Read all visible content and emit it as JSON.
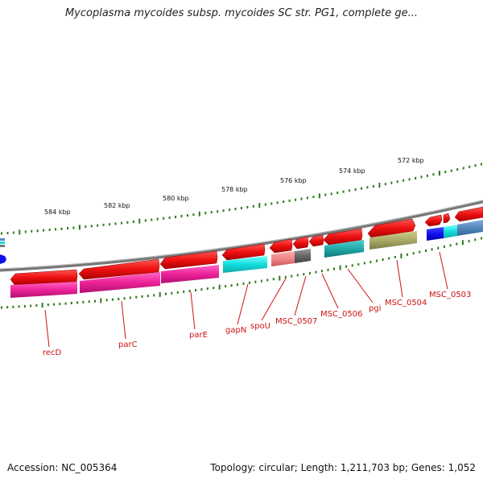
{
  "title": "Mycoplasma mycoides subsp. mycoides SC str. PG1, complete ge...",
  "footer": {
    "accession": "Accession: NC_005364",
    "summary": "Topology: circular; Length: 1,211,703 bp; Genes: 1,052"
  },
  "scale_labels": [
    "584 kbp",
    "582 kbp",
    "580 kbp",
    "578 kbp",
    "576 kbp",
    "574 kbp",
    "572 kbp"
  ],
  "gene_labels": [
    "recD",
    "parC",
    "parE",
    "gapN",
    "spoU",
    "MSC_0507",
    "MSC_0506",
    "pgi",
    "MSC_0504",
    "MSC_0503"
  ],
  "colors": {
    "backbone": "#888888",
    "gene_arrow": "#ee1111",
    "label_line": "#cc1111",
    "tick": "#2a7a1a",
    "magenta": "#ee2299",
    "cyan": "#11dddd",
    "teal": "#22aaaa",
    "olive": "#aaaa66",
    "salmon": "#ee8888",
    "gray": "#777777",
    "blue": "#1111ee",
    "steel": "#5588bb"
  }
}
